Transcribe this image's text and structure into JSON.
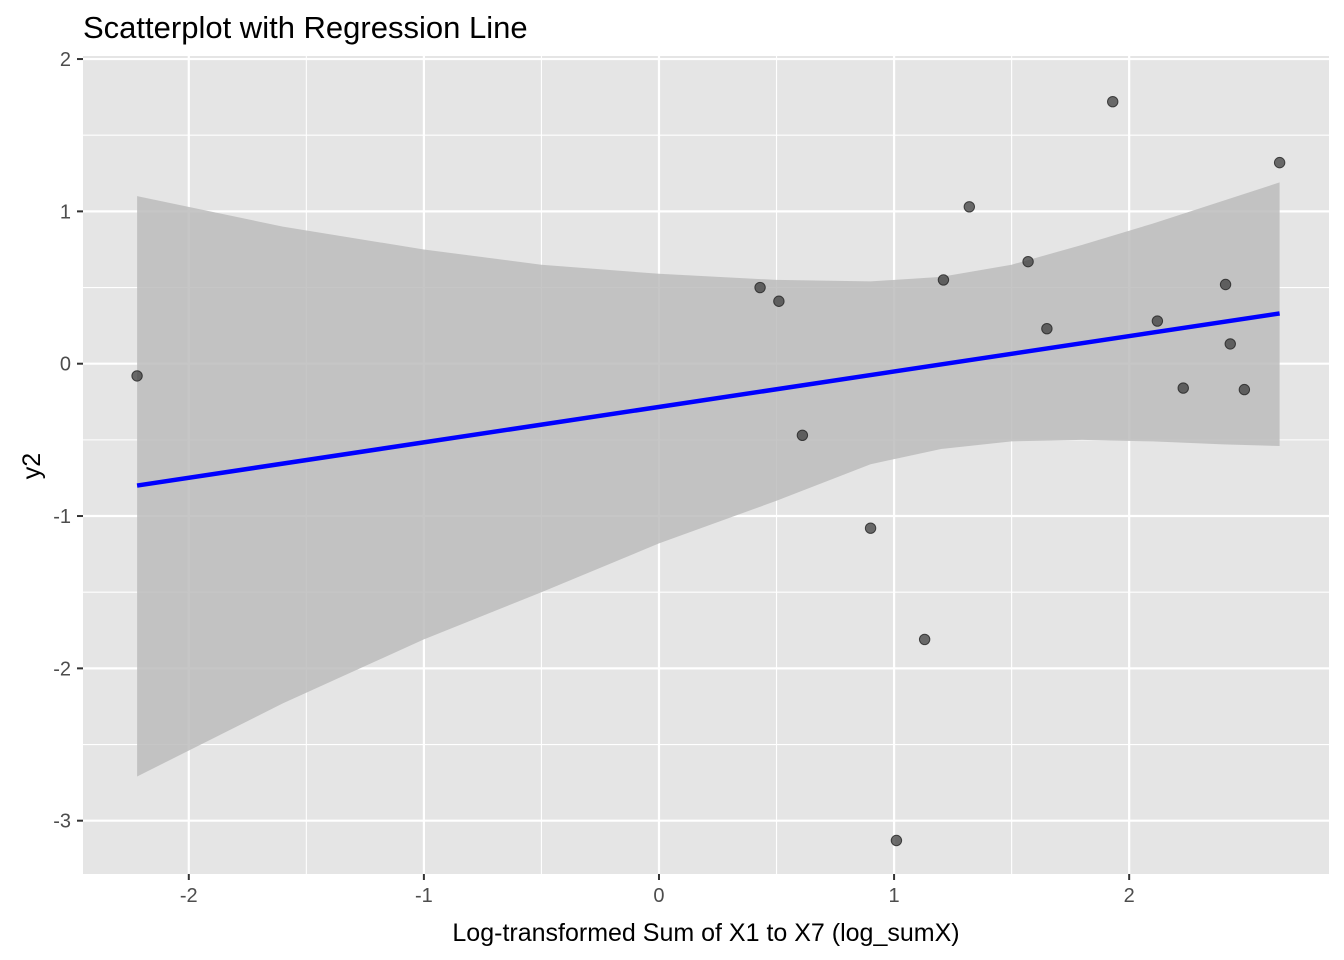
{
  "chart_data": {
    "type": "scatter",
    "title": "Scatterplot with Regression Line",
    "xlabel": "Log-transformed Sum of X1 to X7 (log_sumX)",
    "ylabel": "y2",
    "xlim": [
      -2.45,
      2.85
    ],
    "ylim": [
      -3.35,
      2.02
    ],
    "x_ticks": [
      -2,
      -1,
      0,
      1,
      2
    ],
    "x_tick_labels": [
      "-2",
      "-1",
      "0",
      "1",
      "2"
    ],
    "y_ticks": [
      2,
      1,
      0,
      -1,
      -2,
      -3
    ],
    "y_tick_labels": [
      "2",
      "1",
      "0",
      "-1",
      "-2",
      "-3"
    ],
    "grid": true,
    "legend": "none",
    "colors": {
      "panel": "#e5e5e5",
      "grid": "#ffffff",
      "points": "#333333",
      "regression_line": "#0000ff",
      "confidence_band": "#bcbcbc"
    },
    "points": [
      {
        "x": -2.22,
        "y": -0.08
      },
      {
        "x": 0.43,
        "y": 0.5
      },
      {
        "x": 0.51,
        "y": 0.41
      },
      {
        "x": 0.61,
        "y": -0.47
      },
      {
        "x": 0.9,
        "y": -1.08
      },
      {
        "x": 1.01,
        "y": -3.13
      },
      {
        "x": 1.13,
        "y": -1.81
      },
      {
        "x": 1.21,
        "y": 0.55
      },
      {
        "x": 1.32,
        "y": 1.03
      },
      {
        "x": 1.57,
        "y": 0.67
      },
      {
        "x": 1.65,
        "y": 0.23
      },
      {
        "x": 1.93,
        "y": 1.72
      },
      {
        "x": 2.12,
        "y": 0.28
      },
      {
        "x": 2.23,
        "y": -0.16
      },
      {
        "x": 2.41,
        "y": 0.52
      },
      {
        "x": 2.43,
        "y": 0.13
      },
      {
        "x": 2.49,
        "y": -0.17
      },
      {
        "x": 2.64,
        "y": 1.32
      }
    ],
    "regression_line": {
      "x": [
        -2.22,
        2.64
      ],
      "y": [
        -0.8,
        0.33
      ]
    },
    "confidence_band": {
      "x": [
        -2.22,
        -1.6,
        -1.0,
        -0.5,
        0.0,
        0.5,
        0.9,
        1.2,
        1.5,
        1.8,
        2.1,
        2.4,
        2.64
      ],
      "upper": [
        1.1,
        0.9,
        0.75,
        0.65,
        0.59,
        0.55,
        0.54,
        0.57,
        0.65,
        0.78,
        0.92,
        1.07,
        1.19
      ],
      "lower": [
        -2.71,
        -2.23,
        -1.81,
        -1.5,
        -1.18,
        -0.9,
        -0.66,
        -0.56,
        -0.51,
        -0.5,
        -0.51,
        -0.53,
        -0.54
      ]
    }
  }
}
